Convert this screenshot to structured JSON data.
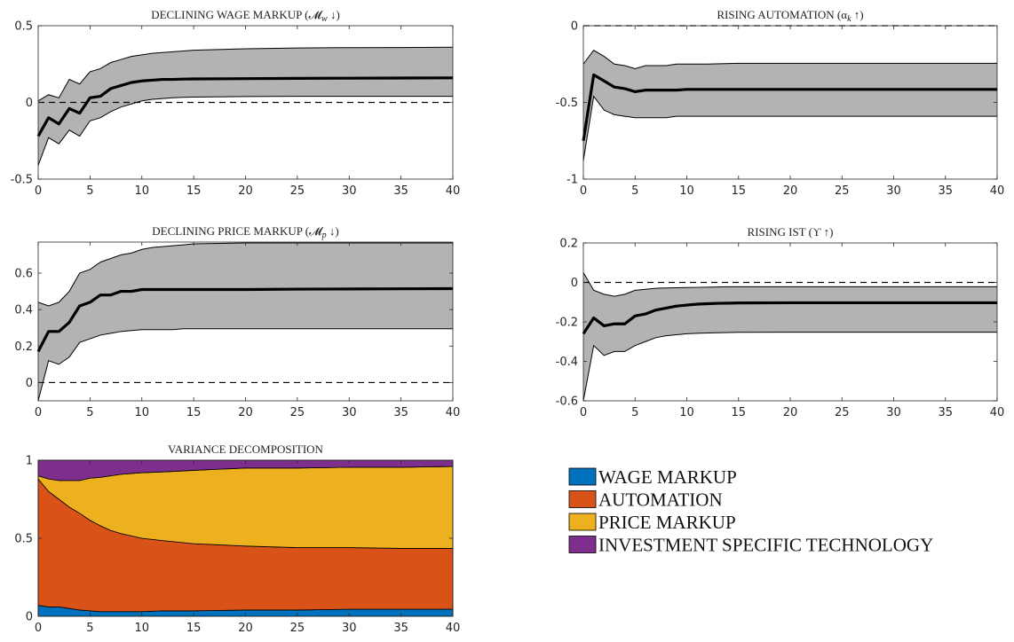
{
  "chart_data": [
    {
      "type": "area",
      "title": "DECLINING WAGE MARKUP (𝓜",
      "title_sub": "w",
      "title_arrow": " ↓)",
      "xlim": [
        0,
        40
      ],
      "ylim": [
        -0.5,
        0.5
      ],
      "xticks": [
        "0",
        "5",
        "10",
        "15",
        "20",
        "25",
        "30",
        "35",
        "40"
      ],
      "yticks": [
        "-0.5",
        "0",
        "0.5"
      ],
      "reference_line": 0,
      "x": [
        0,
        1,
        2,
        3,
        4,
        5,
        6,
        7,
        8,
        9,
        10,
        11,
        12,
        13,
        14,
        15,
        20,
        25,
        30,
        35,
        40
      ],
      "median": [
        -0.22,
        -0.1,
        -0.14,
        -0.04,
        -0.07,
        0.03,
        0.04,
        0.09,
        0.11,
        0.13,
        0.14,
        0.145,
        0.15,
        0.15,
        0.152,
        0.153,
        0.155,
        0.157,
        0.158,
        0.159,
        0.16
      ],
      "upper": [
        0.01,
        0.05,
        0.03,
        0.15,
        0.12,
        0.2,
        0.22,
        0.26,
        0.28,
        0.3,
        0.31,
        0.32,
        0.325,
        0.33,
        0.335,
        0.34,
        0.35,
        0.355,
        0.357,
        0.358,
        0.36
      ],
      "lower": [
        -0.41,
        -0.23,
        -0.27,
        -0.18,
        -0.22,
        -0.12,
        -0.1,
        -0.06,
        -0.03,
        -0.01,
        0.01,
        0.02,
        0.025,
        0.03,
        0.033,
        0.035,
        0.038,
        0.04,
        0.04,
        0.04,
        0.04
      ]
    },
    {
      "type": "area",
      "title": "RISING AUTOMATION (α",
      "title_sub": "k",
      "title_arrow": " ↑)",
      "xlim": [
        0,
        40
      ],
      "ylim": [
        -1,
        0
      ],
      "xticks": [
        "0",
        "5",
        "10",
        "15",
        "20",
        "25",
        "30",
        "35",
        "40"
      ],
      "yticks": [
        "-1",
        "-0.5",
        "0"
      ],
      "reference_line": 0,
      "x": [
        0,
        1,
        2,
        3,
        4,
        5,
        6,
        7,
        8,
        9,
        10,
        12,
        15,
        20,
        25,
        30,
        35,
        40
      ],
      "median": [
        -0.75,
        -0.32,
        -0.36,
        -0.4,
        -0.41,
        -0.43,
        -0.42,
        -0.42,
        -0.42,
        -0.42,
        -0.415,
        -0.415,
        -0.415,
        -0.415,
        -0.415,
        -0.415,
        -0.415,
        -0.415
      ],
      "upper": [
        -0.25,
        -0.16,
        -0.2,
        -0.25,
        -0.26,
        -0.28,
        -0.26,
        -0.26,
        -0.26,
        -0.25,
        -0.25,
        -0.25,
        -0.245,
        -0.245,
        -0.245,
        -0.245,
        -0.245,
        -0.245
      ],
      "lower": [
        -0.88,
        -0.46,
        -0.55,
        -0.58,
        -0.59,
        -0.6,
        -0.6,
        -0.6,
        -0.6,
        -0.59,
        -0.59,
        -0.59,
        -0.59,
        -0.59,
        -0.59,
        -0.59,
        -0.59,
        -0.59
      ]
    },
    {
      "type": "area",
      "title": "DECLINING PRICE MARKUP (𝓜",
      "title_sub": "p",
      "title_arrow": " ↓)",
      "xlim": [
        0,
        40
      ],
      "ylim": [
        -0.1,
        0.77
      ],
      "xticks": [
        "0",
        "5",
        "10",
        "15",
        "20",
        "25",
        "30",
        "35",
        "40"
      ],
      "yticks": [
        "0",
        "0.2",
        "0.4",
        "0.6"
      ],
      "reference_line": 0,
      "x": [
        0,
        1,
        2,
        3,
        4,
        5,
        6,
        7,
        8,
        9,
        10,
        11,
        12,
        13,
        14,
        15,
        20,
        25,
        30,
        35,
        40
      ],
      "median": [
        0.17,
        0.28,
        0.28,
        0.33,
        0.42,
        0.44,
        0.48,
        0.48,
        0.5,
        0.5,
        0.51,
        0.51,
        0.51,
        0.51,
        0.51,
        0.51,
        0.51,
        0.512,
        0.513,
        0.514,
        0.515
      ],
      "upper": [
        0.44,
        0.42,
        0.44,
        0.5,
        0.6,
        0.62,
        0.66,
        0.68,
        0.7,
        0.71,
        0.73,
        0.74,
        0.745,
        0.75,
        0.755,
        0.76,
        0.765,
        0.765,
        0.765,
        0.765,
        0.765
      ],
      "lower": [
        -0.1,
        0.12,
        0.1,
        0.14,
        0.22,
        0.24,
        0.26,
        0.27,
        0.28,
        0.285,
        0.29,
        0.29,
        0.29,
        0.29,
        0.295,
        0.295,
        0.295,
        0.295,
        0.295,
        0.295,
        0.295
      ]
    },
    {
      "type": "area",
      "title": "RISING IST (ϒ",
      "title_sub": "",
      "title_arrow": " ↑)",
      "xlim": [
        0,
        40
      ],
      "ylim": [
        -0.6,
        0.2
      ],
      "xticks": [
        "0",
        "5",
        "10",
        "15",
        "20",
        "25",
        "30",
        "35",
        "40"
      ],
      "yticks": [
        "-0.6",
        "-0.4",
        "-0.2",
        "0",
        "0.2"
      ],
      "reference_line": 0,
      "x": [
        0,
        1,
        2,
        3,
        4,
        5,
        6,
        7,
        8,
        9,
        10,
        11,
        12,
        13,
        14,
        15,
        20,
        25,
        30,
        35,
        40
      ],
      "median": [
        -0.26,
        -0.18,
        -0.22,
        -0.21,
        -0.21,
        -0.17,
        -0.16,
        -0.14,
        -0.13,
        -0.12,
        -0.115,
        -0.11,
        -0.108,
        -0.106,
        -0.105,
        -0.104,
        -0.103,
        -0.103,
        -0.103,
        -0.103,
        -0.103
      ],
      "upper": [
        0.05,
        -0.04,
        -0.06,
        -0.07,
        -0.06,
        -0.04,
        -0.035,
        -0.03,
        -0.028,
        -0.027,
        -0.026,
        -0.025,
        -0.024,
        -0.023,
        -0.022,
        -0.022,
        -0.022,
        -0.022,
        -0.022,
        -0.022,
        -0.022
      ],
      "lower": [
        -0.6,
        -0.32,
        -0.37,
        -0.35,
        -0.35,
        -0.32,
        -0.3,
        -0.28,
        -0.27,
        -0.265,
        -0.26,
        -0.258,
        -0.256,
        -0.255,
        -0.254,
        -0.253,
        -0.252,
        -0.252,
        -0.252,
        -0.252,
        -0.252
      ]
    },
    {
      "type": "area",
      "title": "VARIANCE DECOMPOSITION",
      "title_sub": "",
      "title_arrow": "",
      "stacked": true,
      "xlim": [
        0,
        40
      ],
      "ylim": [
        0,
        1
      ],
      "xticks": [
        "0",
        "5",
        "10",
        "15",
        "20",
        "25",
        "30",
        "35",
        "40"
      ],
      "yticks": [
        "0",
        "0.5",
        "1"
      ],
      "x": [
        0,
        1,
        2,
        3,
        4,
        5,
        6,
        7,
        8,
        10,
        12,
        15,
        20,
        25,
        30,
        35,
        40
      ],
      "series": [
        {
          "name": "WAGE MARKUP",
          "color": "#0072BD",
          "values": [
            0.07,
            0.06,
            0.06,
            0.05,
            0.04,
            0.035,
            0.03,
            0.03,
            0.03,
            0.03,
            0.035,
            0.035,
            0.04,
            0.04,
            0.045,
            0.045,
            0.045
          ]
        },
        {
          "name": "AUTOMATION",
          "color": "#D95319",
          "values": [
            0.81,
            0.74,
            0.69,
            0.65,
            0.62,
            0.58,
            0.55,
            0.52,
            0.5,
            0.47,
            0.45,
            0.43,
            0.41,
            0.4,
            0.395,
            0.39,
            0.39
          ]
        },
        {
          "name": "PRICE MARKUP",
          "color": "#EDB120",
          "values": [
            0.02,
            0.08,
            0.12,
            0.17,
            0.21,
            0.27,
            0.31,
            0.35,
            0.38,
            0.42,
            0.44,
            0.47,
            0.5,
            0.51,
            0.515,
            0.52,
            0.525
          ]
        },
        {
          "name": "INVESTMENT SPECIFIC TECHNOLOGY",
          "color": "#7E2F8E",
          "values": [
            0.1,
            0.12,
            0.13,
            0.13,
            0.13,
            0.115,
            0.11,
            0.1,
            0.09,
            0.08,
            0.075,
            0.065,
            0.05,
            0.05,
            0.045,
            0.045,
            0.04
          ]
        }
      ]
    }
  ],
  "legend": [
    {
      "label": "WAGE MARKUP",
      "color": "#0072BD"
    },
    {
      "label": "AUTOMATION",
      "color": "#D95319"
    },
    {
      "label": "PRICE MARKUP",
      "color": "#EDB120"
    },
    {
      "label": "INVESTMENT SPECIFIC TECHNOLOGY",
      "color": "#7E2F8E"
    }
  ]
}
